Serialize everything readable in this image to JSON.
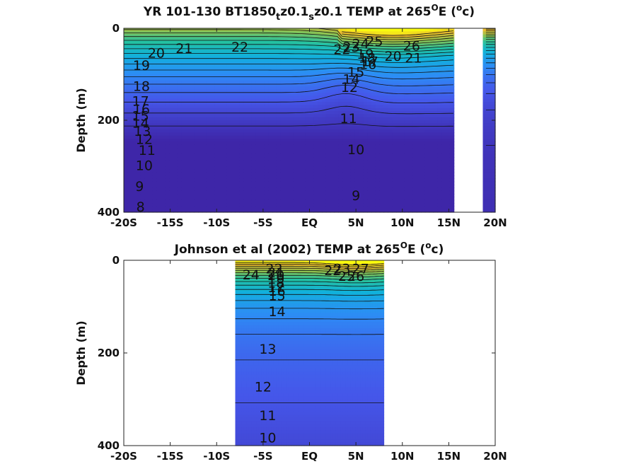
{
  "chart_data": [
    {
      "type": "heatmap",
      "title": "YR 101-130 BT1850_tz0.1_sz0.1 TEMP at 265°E (°c)",
      "title_parts": [
        "YR 101-130 BT1850",
        "t",
        "z0.1",
        "s",
        "z0.1 TEMP at 265",
        "O",
        "E (",
        "o",
        "c)"
      ],
      "ylabel": "Depth (m)",
      "xlim": [
        -20,
        20
      ],
      "ylim": [
        0,
        400
      ],
      "y_reversed": true,
      "xticks": [
        -20,
        -15,
        -10,
        -5,
        0,
        5,
        10,
        15,
        20
      ],
      "xtick_labels": [
        "-20S",
        "-15S",
        "-10S",
        "-5S",
        "EQ",
        "5N",
        "10N",
        "15N",
        "20N"
      ],
      "yticks": [
        0,
        200,
        400
      ],
      "ytick_labels": [
        "0",
        "200",
        "400"
      ],
      "data_xrange": [
        -20,
        20
      ],
      "missing_xrange": [
        15.5,
        18.8
      ],
      "colormap": "parula",
      "color_range": [
        7,
        28
      ],
      "contour_levels": [
        8,
        9,
        10,
        11,
        12,
        13,
        14,
        15,
        16,
        17,
        18,
        19,
        20,
        21,
        22,
        23,
        24,
        25,
        26
      ],
      "contour_labels": [
        {
          "text": "8",
          "x": -18.2,
          "y": 390
        },
        {
          "text": "9",
          "x": -18.3,
          "y": 345
        },
        {
          "text": "10",
          "x": -17.8,
          "y": 300
        },
        {
          "text": "11",
          "x": -17.5,
          "y": 267
        },
        {
          "text": "12",
          "x": -17.8,
          "y": 243
        },
        {
          "text": "13",
          "x": -18,
          "y": 225
        },
        {
          "text": "14",
          "x": -18.2,
          "y": 208
        },
        {
          "text": "15",
          "x": -18.2,
          "y": 192
        },
        {
          "text": "16",
          "x": -18.1,
          "y": 178
        },
        {
          "text": "17",
          "x": -18.2,
          "y": 160
        },
        {
          "text": "18",
          "x": -18.1,
          "y": 128
        },
        {
          "text": "19",
          "x": -18.1,
          "y": 82
        },
        {
          "text": "20",
          "x": -16.5,
          "y": 55
        },
        {
          "text": "21",
          "x": -13.5,
          "y": 45
        },
        {
          "text": "22",
          "x": -7.5,
          "y": 42
        },
        {
          "text": "22",
          "x": 3.5,
          "y": 48
        },
        {
          "text": "23",
          "x": 4.5,
          "y": 42
        },
        {
          "text": "24",
          "x": 5.5,
          "y": 35
        },
        {
          "text": "25",
          "x": 7,
          "y": 30
        },
        {
          "text": "26",
          "x": 11,
          "y": 40
        },
        {
          "text": "20",
          "x": 9,
          "y": 62
        },
        {
          "text": "21",
          "x": 11.2,
          "y": 66
        },
        {
          "text": "19",
          "x": 6,
          "y": 58
        },
        {
          "text": "18",
          "x": 6.2,
          "y": 66
        },
        {
          "text": "17",
          "x": 6.5,
          "y": 74
        },
        {
          "text": "16",
          "x": 6.3,
          "y": 80
        },
        {
          "text": "15",
          "x": 5,
          "y": 97
        },
        {
          "text": "14",
          "x": 4.5,
          "y": 112
        },
        {
          "text": "12",
          "x": 4.3,
          "y": 130
        },
        {
          "text": "11",
          "x": 4.2,
          "y": 198
        },
        {
          "text": "10",
          "x": 5,
          "y": 265
        },
        {
          "text": "9",
          "x": 5,
          "y": 365
        }
      ]
    },
    {
      "type": "heatmap",
      "title": "Johnson et al (2002) TEMP at 265°E (°c)",
      "title_parts": [
        "Johnson et al (2002) TEMP at 265",
        "O",
        "E (",
        "o",
        "c)"
      ],
      "ylabel": "Depth (m)",
      "xlim": [
        -20,
        20
      ],
      "ylim": [
        0,
        400
      ],
      "y_reversed": true,
      "xticks": [
        -20,
        -15,
        -10,
        -5,
        0,
        5,
        10,
        15,
        20
      ],
      "xtick_labels": [
        "-20S",
        "-15S",
        "-10S",
        "-5S",
        "EQ",
        "5N",
        "10N",
        "15N",
        "20N"
      ],
      "yticks": [
        0,
        200,
        400
      ],
      "ytick_labels": [
        "0",
        "200",
        "400"
      ],
      "data_xrange": [
        -8,
        8
      ],
      "colormap": "parula",
      "color_range": [
        7,
        28
      ],
      "contour_levels": [
        10,
        11,
        12,
        13,
        14,
        15,
        16,
        17,
        18,
        19,
        20,
        21,
        22,
        23,
        24,
        25,
        26,
        27
      ],
      "contour_labels": [
        {
          "text": "10",
          "x": -4.5,
          "y": 385
        },
        {
          "text": "11",
          "x": -4.5,
          "y": 337
        },
        {
          "text": "12",
          "x": -5,
          "y": 275
        },
        {
          "text": "13",
          "x": -4.5,
          "y": 193
        },
        {
          "text": "14",
          "x": -3.5,
          "y": 112
        },
        {
          "text": "15",
          "x": -3.5,
          "y": 78
        },
        {
          "text": "16",
          "x": -3.5,
          "y": 68
        },
        {
          "text": "17",
          "x": -3.6,
          "y": 60
        },
        {
          "text": "18",
          "x": -3.6,
          "y": 50
        },
        {
          "text": "19",
          "x": -3.6,
          "y": 42
        },
        {
          "text": "20",
          "x": -3.6,
          "y": 34
        },
        {
          "text": "21",
          "x": -3.6,
          "y": 28
        },
        {
          "text": "22",
          "x": -3.8,
          "y": 20
        },
        {
          "text": "24",
          "x": -6.3,
          "y": 33
        },
        {
          "text": "22",
          "x": 2.5,
          "y": 24
        },
        {
          "text": "23",
          "x": 3.5,
          "y": 20
        },
        {
          "text": "25",
          "x": 4,
          "y": 36
        },
        {
          "text": "26",
          "x": 5,
          "y": 36
        },
        {
          "text": "27",
          "x": 5.5,
          "y": 20
        }
      ]
    }
  ]
}
